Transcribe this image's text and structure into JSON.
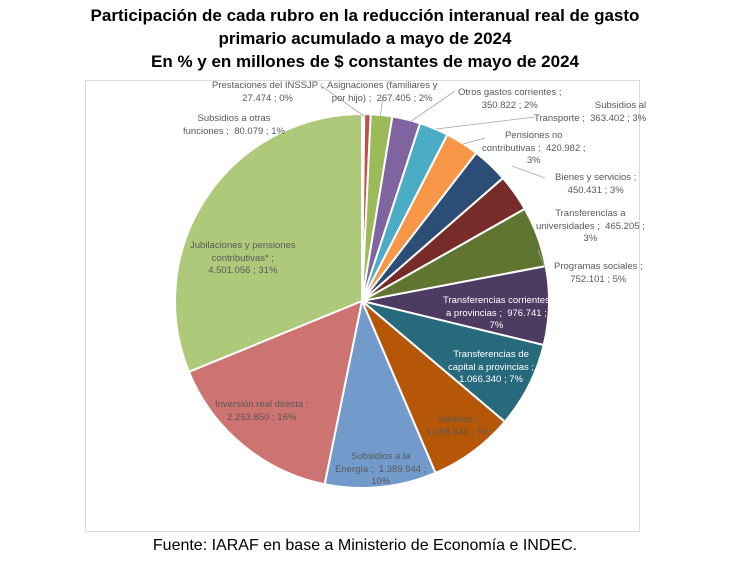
{
  "title_line1": "Participación de cada rubro en la reducción interanual real de gasto primario acumulado a mayo de 2024",
  "title_line2": "En % y en millones de $ constantes de mayo de 2024",
  "source": "Fuente: IARAF en base a Ministerio de Economía e INDEC.",
  "chart_data": {
    "type": "pie",
    "title": "Participación de cada rubro en la reducción interanual real de gasto primario acumulado a mayo de 2024 — En % y en millones de $ constantes de mayo de 2024",
    "start": "top",
    "direction": "clockwise",
    "slices": [
      {
        "label": "Prestaciones del INSSJP",
        "value": 27474,
        "value_text": "27.474",
        "pct": "0%",
        "color": "#c0504d"
      },
      {
        "label": "Subsidios a otras funciones",
        "value": 80079,
        "value_text": "80.079",
        "pct": "1%",
        "color": "#c0504d"
      },
      {
        "label": "Asignaciones (familiares y por hijo)",
        "value": 267405,
        "value_text": "267.405",
        "pct": "2%",
        "color": "#9bbb59"
      },
      {
        "label": "Otros gastos corrientes",
        "value": 350822,
        "value_text": "350.822",
        "pct": "2%",
        "color": "#8064a2"
      },
      {
        "label": "Subsidios al Transporte",
        "value": 363402,
        "value_text": "363.402",
        "pct": "3%",
        "color": "#4bacc6"
      },
      {
        "label": "Pensiones no contributivas",
        "value": 420982,
        "value_text": "420.982",
        "pct": "3%",
        "color": "#f79646"
      },
      {
        "label": "Bienes y servicios",
        "value": 450431,
        "value_text": "450.431",
        "pct": "3%",
        "color": "#2c4d75"
      },
      {
        "label": "Transferencias a universidades",
        "value": 465205,
        "value_text": "465.205",
        "pct": "3%",
        "color": "#772c2a"
      },
      {
        "label": "Programas sociales",
        "value": 752101,
        "value_text": "752.101",
        "pct": "5%",
        "color": "#5f7530"
      },
      {
        "label": "Transferencias corrientes a provincias",
        "value": 976741,
        "value_text": "976.741",
        "pct": "7%",
        "color": "#4d3b62"
      },
      {
        "label": "Transferencias de capital a provincias",
        "value": 1066340,
        "value_text": "1.066.340",
        "pct": "7%",
        "color": "#276a7c"
      },
      {
        "label": "Salarios",
        "value": 1068344,
        "value_text": "1.068.344",
        "pct": "7%",
        "color": "#b65708"
      },
      {
        "label": "Subsidios a la Energía",
        "value": 1389944,
        "value_text": "1.389.944",
        "pct": "10%",
        "color": "#729aca"
      },
      {
        "label": "Inversión real directa",
        "value": 2253850,
        "value_text": "2.253.850",
        "pct": "16%",
        "color": "#cd7371"
      },
      {
        "label": "Jubilaciones y pensiones contributivas*",
        "value": 4501056,
        "value_text": "4.501.056",
        "pct": "31%",
        "color": "#afc97a"
      }
    ],
    "data_labels": [
      "Prestaciones del INSSJP ;\n27.474 ; 0%",
      "Subsidios a otras\nfunciones ;  80.079 ; 1%",
      "Asignaciones (familiares y\npor hijo) ;  267.405 ; 2%",
      "Otros gastos corrientes ;\n350.822 ; 2%",
      "Subsidios al\nTransporte ;  363.402 ; 3%",
      "Pensiones no\ncontributivas ;  420.982 ;\n3%",
      "Bienes y servicios ;\n450.431 ; 3%",
      "Transferencias a\nuniversidades ;  465.205 ;\n3%",
      "Programas sociales ;\n752.101 ; 5%",
      "Transferencias corrientes\na provincias ;  976.741 ;\n7%",
      "Transferencias de\ncapital a provincias ;\n1.066.340 ; 7%",
      "Salarios ;\n1.068.344 ; 7%",
      "Subsidios a la\nEnergía ;  1.389.944 ;\n10%",
      "Inversión real directa ;\n2.253.850 ; 16%",
      "Jubilaciones y pensiones\ncontributivas* ;\n4.501.056 ; 31%"
    ]
  }
}
